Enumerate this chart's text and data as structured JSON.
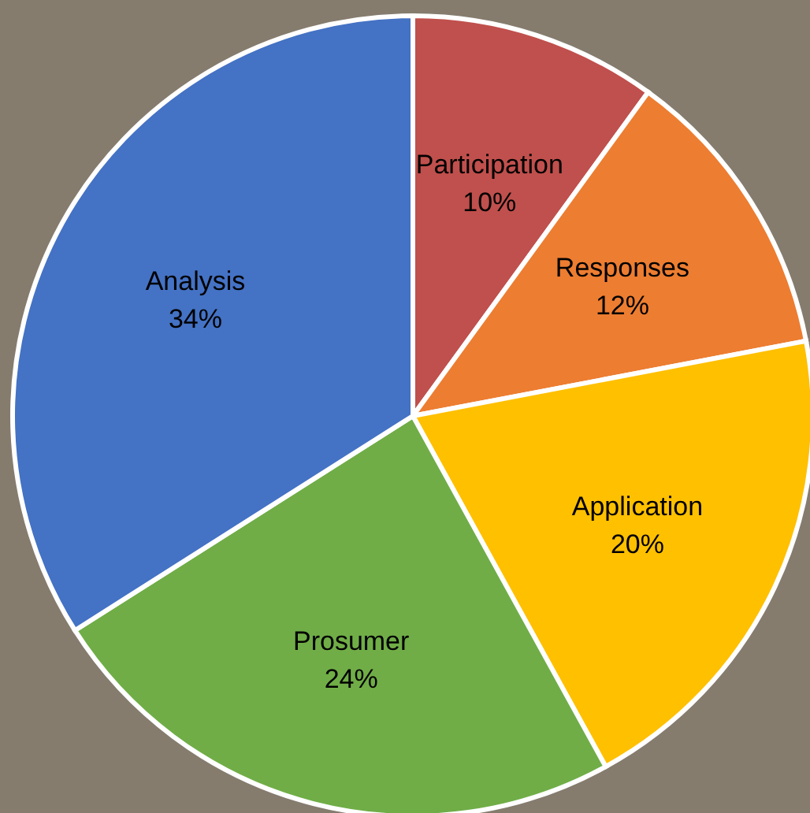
{
  "chart_data": {
    "type": "pie",
    "categories": [
      "Participation",
      "Responses",
      "Application",
      "Prosumer",
      "Analysis"
    ],
    "values": [
      10,
      12,
      20,
      24,
      34
    ],
    "colors": [
      "#c0504d",
      "#ed7d31",
      "#ffc000",
      "#70ad47",
      "#4472c4"
    ],
    "value_labels": [
      "10%",
      "12%",
      "20%",
      "24%",
      "34%"
    ],
    "legend": false
  }
}
